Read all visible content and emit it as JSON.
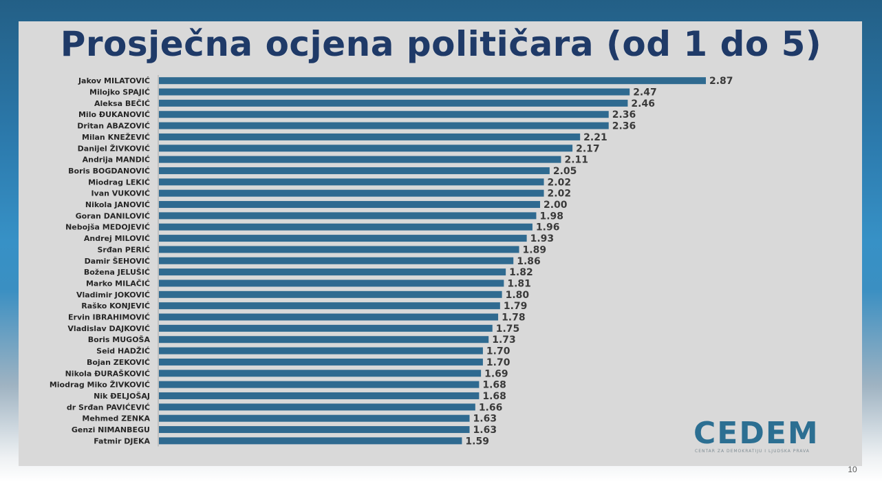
{
  "slide": {
    "title": "Prosječna ocjena političara (od 1 do 5)",
    "page_number": "10"
  },
  "logo": {
    "word": "CEDEM",
    "subtitle": "CENTAR ZA DEMOKRATIJU I LJUDSKA PRAVA"
  },
  "colors": {
    "bar": "#2f6a90",
    "title": "#1f3a68",
    "panel": "#d9d9d9"
  },
  "chart_data": {
    "type": "bar",
    "orientation": "horizontal",
    "title": "Prosječna ocjena političara (od 1 do 5)",
    "xlabel": "",
    "ylabel": "",
    "xlim": [
      0,
      2.87
    ],
    "grid": false,
    "legend": "none",
    "categories": [
      "Jakov MILATOVIĆ",
      "Milojko SPAJIĆ",
      "Aleksa BEČIĆ",
      "Milo ĐUKANOVIĆ",
      "Dritan ABAZOVIĆ",
      "Milan KNEŽEVIĆ",
      "Danijel ŽIVKOVIĆ",
      "Andrija MANDIĆ",
      "Boris BOGDANOVIĆ",
      "Miodrag LEKIĆ",
      "Ivan VUKOVIĆ",
      "Nikola JANOVIĆ",
      "Goran DANILOVIĆ",
      "Nebojša MEDOJEVIĆ",
      "Andrej MILOVIĆ",
      "Srđan PERIĆ",
      "Damir ŠEHOVIĆ",
      "Božena JELUŠIĆ",
      "Marko MILAČIĆ",
      "Vladimir JOKOVIĆ",
      "Raško KONJEVIĆ",
      "Ervin IBRAHIMOVIĆ",
      "Vladislav DAJKOVIĆ",
      "Boris MUGOŠA",
      "Seid HADŽIĆ",
      "Bojan ZEKOVIĆ",
      "Nikola ĐURAŠKOVIĆ",
      "Miodrag Miko ŽIVKOVIĆ",
      "Nik ĐELJOŠAJ",
      "dr Srđan PAVIĆEVIĆ",
      "Mehmed ZENKA",
      "Genzi NIMANBEGU",
      "Fatmir DJEKA"
    ],
    "values": [
      2.87,
      2.47,
      2.46,
      2.36,
      2.36,
      2.21,
      2.17,
      2.11,
      2.05,
      2.02,
      2.02,
      2.0,
      1.98,
      1.96,
      1.93,
      1.89,
      1.86,
      1.82,
      1.81,
      1.8,
      1.79,
      1.78,
      1.75,
      1.73,
      1.7,
      1.7,
      1.69,
      1.68,
      1.68,
      1.66,
      1.63,
      1.63,
      1.59
    ],
    "value_labels": [
      "2.87",
      "2.47",
      "2.46",
      "2.36",
      "2.36",
      "2.21",
      "2.17",
      "2.11",
      "2.05",
      "2.02",
      "2.02",
      "2.00",
      "1.98",
      "1.96",
      "1.93",
      "1.89",
      "1.86",
      "1.82",
      "1.81",
      "1.80",
      "1.79",
      "1.78",
      "1.75",
      "1.73",
      "1.70",
      "1.70",
      "1.69",
      "1.68",
      "1.68",
      "1.66",
      "1.63",
      "1.63",
      "1.59"
    ]
  }
}
